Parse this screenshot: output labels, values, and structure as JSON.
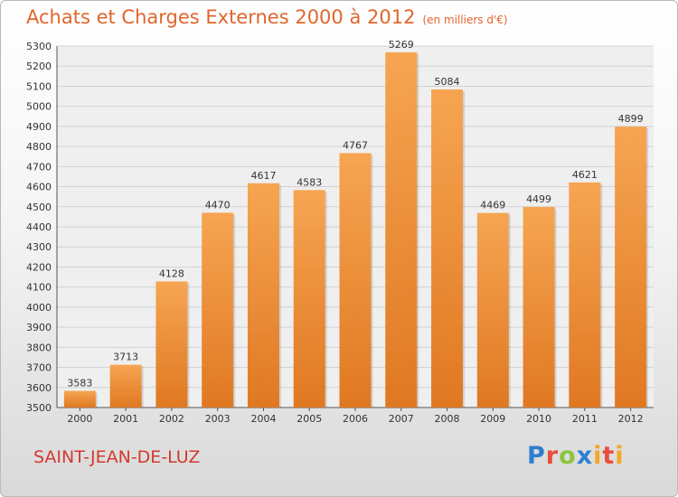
{
  "title": "Achats et Charges Externes 2000 à 2012",
  "title_unit": "(en milliers d'€)",
  "city": "SAINT-JEAN-DE-LUZ",
  "logo": "Proxiti",
  "colors": {
    "title": "#e0662c",
    "city": "#d23a2e",
    "bar_top": "#f6a552",
    "bar_bottom": "#e07822"
  },
  "chart_data": {
    "type": "bar",
    "categories": [
      "2000",
      "2001",
      "2002",
      "2003",
      "2004",
      "2005",
      "2006",
      "2007",
      "2008",
      "2009",
      "2010",
      "2011",
      "2012"
    ],
    "values": [
      3583,
      3713,
      4128,
      4470,
      4617,
      4583,
      4767,
      5269,
      5084,
      4469,
      4499,
      4621,
      4899
    ],
    "ylim": [
      3500,
      5300
    ],
    "yticks": [
      3500,
      3600,
      3700,
      3800,
      3900,
      4000,
      4100,
      4200,
      4300,
      4400,
      4500,
      4600,
      4700,
      4800,
      4900,
      5000,
      5100,
      5200,
      5300
    ],
    "grid": true
  }
}
